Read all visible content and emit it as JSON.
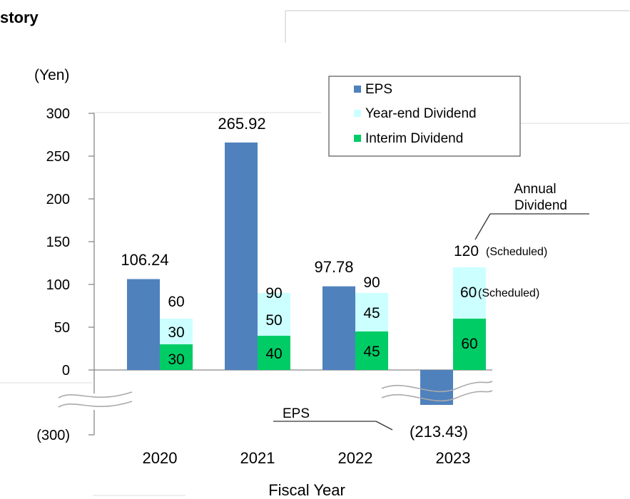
{
  "page": {
    "title_fragment": "story"
  },
  "chart_data": {
    "type": "bar",
    "title": "",
    "xlabel": "Fiscal Year",
    "ylabel": "(Yen)",
    "categories": [
      "2020",
      "2021",
      "2022",
      "2023"
    ],
    "y_ticks": [
      "300",
      "250",
      "200",
      "150",
      "100",
      "50",
      "0",
      "(300)"
    ],
    "y_tick_values": [
      300,
      250,
      200,
      150,
      100,
      50,
      0,
      -300
    ],
    "ylim": [
      -300,
      300
    ],
    "axis_break": true,
    "legend_position": "top-right",
    "series": [
      {
        "name": "EPS",
        "color": "#4F81BD",
        "values": [
          106.24,
          265.92,
          97.78,
          -213.43
        ],
        "labels": [
          "106.24",
          "265.92",
          "97.78",
          "(213.43)"
        ]
      },
      {
        "name": "Year-end Dividend",
        "color": "#CCFFFF",
        "values": [
          30,
          50,
          45,
          60
        ],
        "labels": [
          "30",
          "50",
          "45",
          "60"
        ]
      },
      {
        "name": "Interim Dividend",
        "color": "#00CC66",
        "values": [
          30,
          40,
          45,
          60
        ],
        "labels": [
          "30",
          "40",
          "45",
          "60"
        ]
      }
    ],
    "annual_dividend_totals": [
      "60",
      "90",
      "90",
      "120"
    ],
    "annotations": {
      "annual_dividend": "Annual\nDividend",
      "scheduled": "(Scheduled)",
      "eps_callout": "EPS"
    }
  }
}
